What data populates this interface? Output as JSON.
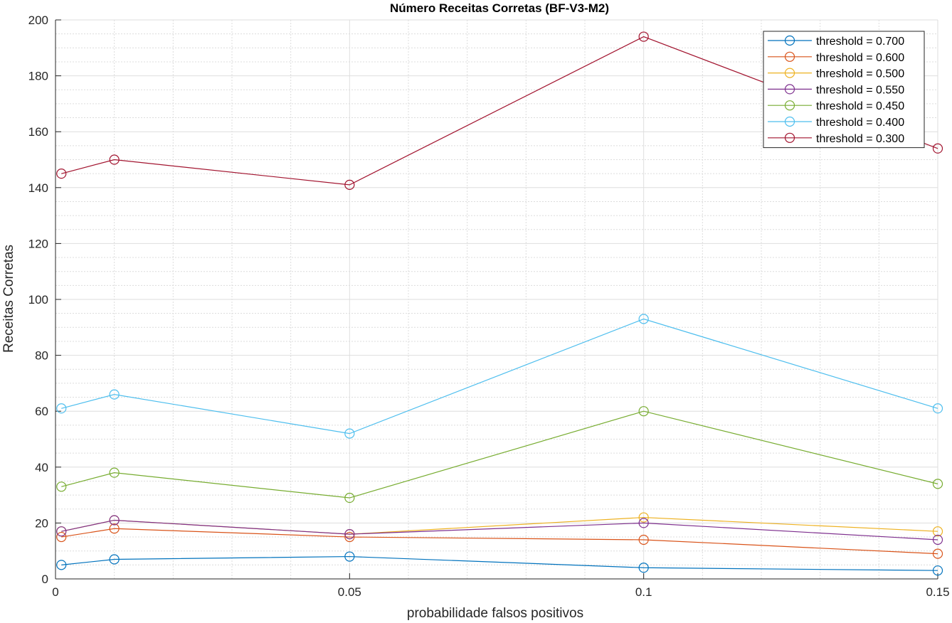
{
  "chart_data": {
    "type": "line",
    "title": "Número Receitas Corretas (BF-V3-M2)",
    "xlabel": "probabilidade falsos positivos",
    "ylabel": "Receitas Corretas",
    "xlim": [
      0,
      0.15
    ],
    "ylim": [
      0,
      200
    ],
    "x": [
      0.001,
      0.01,
      0.05,
      0.1,
      0.15
    ],
    "xticks": [
      0,
      0.05,
      0.1,
      0.15
    ],
    "xtick_labels": [
      "0",
      "0.05",
      "0.1",
      "0.15"
    ],
    "yticks": [
      0,
      20,
      40,
      60,
      80,
      100,
      120,
      140,
      160,
      180,
      200
    ],
    "ytick_labels": [
      "0",
      "20",
      "40",
      "60",
      "80",
      "100",
      "120",
      "140",
      "160",
      "180",
      "200"
    ],
    "grid": true,
    "minor_grid": true,
    "legend_position": "top-right",
    "marker": "circle",
    "series": [
      {
        "name": "threshold = 0.700",
        "color": "#0072bd",
        "values": [
          5,
          7,
          8,
          4,
          3
        ]
      },
      {
        "name": "threshold = 0.600",
        "color": "#d95319",
        "values": [
          15,
          18,
          15,
          14,
          9
        ]
      },
      {
        "name": "threshold = 0.500",
        "color": "#edb120",
        "values": [
          17,
          21,
          16,
          22,
          17
        ]
      },
      {
        "name": "threshold = 0.550",
        "color": "#7e2f8e",
        "values": [
          17,
          21,
          16,
          20,
          14
        ]
      },
      {
        "name": "threshold = 0.450",
        "color": "#77ac30",
        "values": [
          33,
          38,
          29,
          60,
          34
        ]
      },
      {
        "name": "threshold = 0.400",
        "color": "#4dbeee",
        "values": [
          61,
          66,
          52,
          93,
          61
        ]
      },
      {
        "name": "threshold = 0.300",
        "color": "#a2142f",
        "values": [
          145,
          150,
          141,
          194,
          154
        ]
      }
    ]
  }
}
